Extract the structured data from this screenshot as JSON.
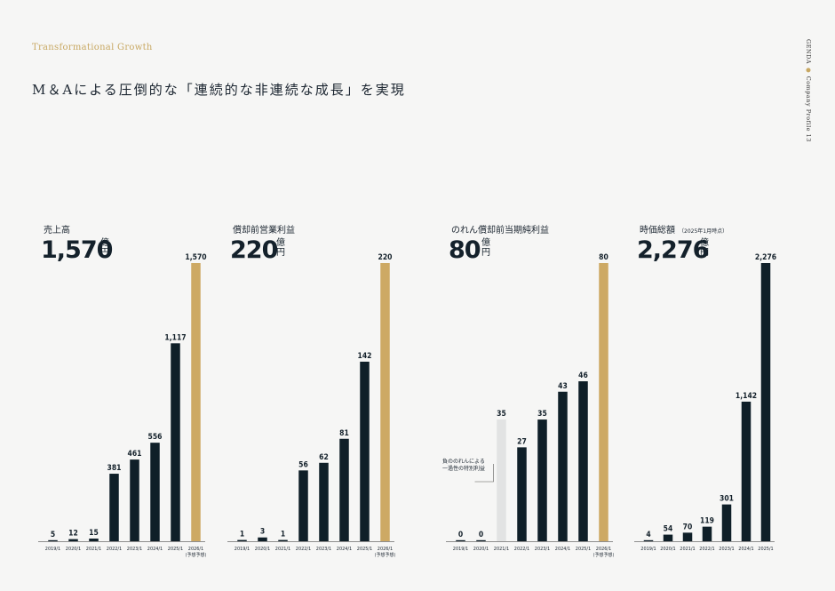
{
  "header": {
    "subtitle": "Transformational Growth",
    "headline": "M＆Aによる圧倒的な「連続的な非連続な成長」を実現"
  },
  "side_label": {
    "brand": "GENDA",
    "dot": "●",
    "text": "Company Profile",
    "page": "13"
  },
  "colors": {
    "bar": "#0f1f28",
    "highlight": "#cda964",
    "gray": "#e2e3e3",
    "axis": "#6b6b6b"
  },
  "units": {
    "oku": "億",
    "en": "円"
  },
  "chart_data": [
    {
      "type": "bar",
      "title": "売上高",
      "note": "",
      "headline_value": "1,570",
      "categories": [
        "2019/1",
        "2020/1",
        "2021/1",
        "2022/1",
        "2023/1",
        "2024/1",
        "2025/1",
        "2026/1"
      ],
      "category_notes": [
        "",
        "",
        "",
        "",
        "",
        "",
        "",
        "(予想予想)"
      ],
      "values": [
        5,
        12,
        15,
        381,
        461,
        556,
        1117,
        1570
      ],
      "labels": [
        "5",
        "12",
        "15",
        "381",
        "461",
        "556",
        "1,117",
        "1,570"
      ],
      "styles": [
        "dark",
        "dark",
        "dark",
        "dark",
        "dark",
        "dark",
        "dark",
        "highlight"
      ],
      "ylim": [
        0,
        1570
      ]
    },
    {
      "type": "bar",
      "title": "償却前営業利益",
      "note": "",
      "headline_value": "220",
      "categories": [
        "2019/1",
        "2020/1",
        "2021/1",
        "2022/1",
        "2023/1",
        "2024/1",
        "2025/1",
        "2026/1"
      ],
      "category_notes": [
        "",
        "",
        "",
        "",
        "",
        "",
        "",
        "(予想予想)"
      ],
      "values": [
        1,
        3,
        1,
        56,
        62,
        81,
        142,
        220
      ],
      "labels": [
        "1",
        "3",
        "1",
        "56",
        "62",
        "81",
        "142",
        "220"
      ],
      "styles": [
        "dark",
        "dark",
        "dark",
        "dark",
        "dark",
        "dark",
        "dark",
        "highlight"
      ],
      "ylim": [
        0,
        220
      ]
    },
    {
      "type": "bar",
      "title": "のれん償却前当期純利益",
      "note": "",
      "headline_value": "80",
      "categories": [
        "2019/1",
        "2020/1",
        "2021/1",
        "2022/1",
        "2023/1",
        "2024/1",
        "2025/1",
        "2026/1"
      ],
      "category_notes": [
        "",
        "",
        "",
        "",
        "",
        "",
        "",
        "(予想予想)"
      ],
      "values": [
        0,
        0,
        35,
        27,
        35,
        43,
        46,
        80
      ],
      "labels": [
        "0",
        "0",
        "35",
        "27",
        "35",
        "43",
        "46",
        "80"
      ],
      "styles": [
        "dark",
        "dark",
        "gray",
        "dark",
        "dark",
        "dark",
        "dark",
        "highlight"
      ],
      "ylim": [
        0,
        80
      ],
      "annotation": [
        "負ののれんによる",
        "一過性の特別利益"
      ]
    },
    {
      "type": "bar",
      "title": "時価総額",
      "note": "（2025年1月時点）",
      "headline_value": "2,276",
      "categories": [
        "2019/1",
        "2020/1",
        "2021/1",
        "2022/1",
        "2023/1",
        "2024/1",
        "2025/1"
      ],
      "category_notes": [
        "",
        "",
        "",
        "",
        "",
        "",
        ""
      ],
      "values": [
        4,
        54,
        70,
        119,
        301,
        1142,
        2276
      ],
      "labels": [
        "4",
        "54",
        "70",
        "119",
        "301",
        "1,142",
        "2,276"
      ],
      "styles": [
        "dark",
        "dark",
        "dark",
        "dark",
        "dark",
        "dark",
        "dark"
      ],
      "ylim": [
        0,
        2276
      ]
    }
  ]
}
